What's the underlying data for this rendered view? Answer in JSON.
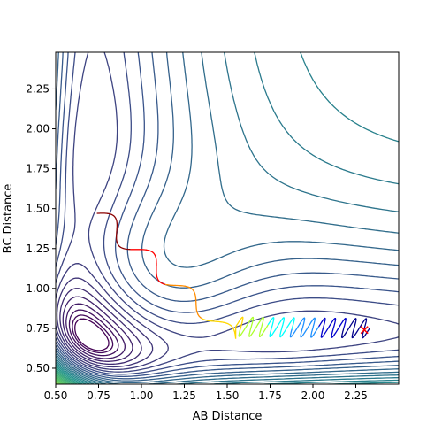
{
  "chart_data": {
    "type": "line",
    "title": "",
    "xlabel": "AB Distance",
    "ylabel": "BC Distance",
    "xlim": [
      0.5,
      2.5
    ],
    "ylim": [
      0.4,
      2.48
    ],
    "xticks": [
      0.5,
      0.75,
      1.0,
      1.25,
      1.5,
      1.75,
      2.0,
      2.25
    ],
    "xtick_labels": [
      "0.50",
      "0.75",
      "1.00",
      "1.25",
      "1.50",
      "1.75",
      "2.00",
      "2.25"
    ],
    "yticks": [
      0.5,
      0.75,
      1.0,
      1.25,
      1.5,
      1.75,
      2.0,
      2.25
    ],
    "ytick_labels": [
      "0.50",
      "0.75",
      "1.00",
      "1.25",
      "1.50",
      "1.75",
      "2.00",
      "2.25"
    ],
    "grid": false,
    "legend": "none",
    "contour_plot": {
      "description_units": "potential energy surface contours",
      "num_levels": 40,
      "colormap": [
        "#440154",
        "#3b528b",
        "#21918c",
        "#5ec962",
        "#fde725"
      ]
    },
    "trajectory": {
      "start": [
        0.74,
        1.47
      ],
      "end_marker": [
        2.3,
        0.74
      ],
      "end_marker_color": "#ff0000",
      "colors": [
        "#8b0000",
        "#ff0000",
        "#ff8c00",
        "#ffd700",
        "#adff2f",
        "#00ffff",
        "#1e90ff",
        "#0000cd",
        "#00008b"
      ]
    }
  }
}
